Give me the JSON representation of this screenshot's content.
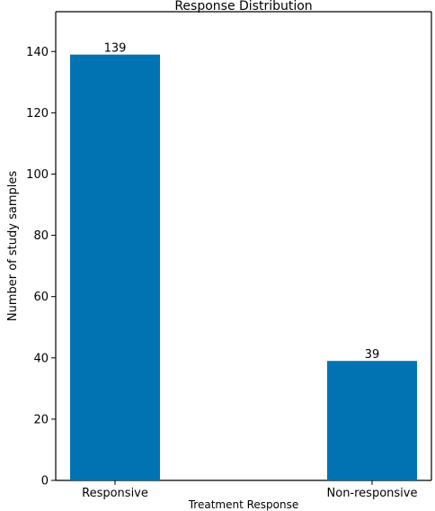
{
  "chart_data": {
    "type": "bar",
    "title": "Response Distribution",
    "xlabel": "Treatment Response",
    "ylabel": "Number of study samples",
    "categories": [
      "Responsive",
      "Non-responsive"
    ],
    "values": [
      139,
      39
    ],
    "data_labels": [
      "139",
      "39"
    ],
    "ylim": [
      0,
      153
    ],
    "yticks": [
      0,
      20,
      40,
      60,
      80,
      100,
      120,
      140
    ],
    "ytick_labels": [
      "0",
      "20",
      "40",
      "60",
      "80",
      "100",
      "120",
      "140"
    ],
    "bar_color": "#0173b2",
    "grid": false,
    "legend": false
  }
}
